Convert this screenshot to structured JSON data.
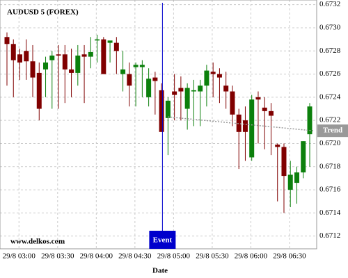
{
  "chart_data": {
    "type": "candlestick",
    "title": "AUDUSD 5 (FOREX)",
    "x_label": "Date",
    "watermark": "www.delkos.com",
    "categories": [
      "29/8 02:55",
      "29/8 03:00",
      "29/8 03:05",
      "29/8 03:10",
      "29/8 03:15",
      "29/8 03:20",
      "29/8 03:25",
      "29/8 03:30",
      "29/8 03:35",
      "29/8 03:40",
      "29/8 03:45",
      "29/8 03:50",
      "29/8 03:55",
      "29/8 04:00",
      "29/8 04:05",
      "29/8 04:10",
      "29/8 04:15",
      "29/8 04:20",
      "29/8 04:25",
      "29/8 04:30",
      "29/8 04:35",
      "29/8 04:40",
      "29/8 04:45",
      "29/8 04:50",
      "29/8 04:55",
      "29/8 05:00",
      "29/8 05:05",
      "29/8 05:10",
      "29/8 05:15",
      "29/8 05:20",
      "29/8 05:25",
      "29/8 05:30",
      "29/8 05:35",
      "29/8 05:40",
      "29/8 05:45",
      "29/8 05:50",
      "29/8 05:55",
      "29/8 06:00",
      "29/8 06:05",
      "29/8 06:10",
      "29/8 06:15",
      "29/8 06:20",
      "29/8 06:25",
      "29/8 06:30",
      "29/8 06:35",
      "29/8 06:40",
      "29/8 06:45",
      "29/8 06:50"
    ],
    "open": [
      0.67292,
      0.67286,
      0.67277,
      0.6728,
      0.67271,
      0.67261,
      0.67264,
      0.67272,
      0.67277,
      0.67277,
      0.67264,
      0.67261,
      0.67277,
      0.67275,
      0.67289,
      0.6729,
      0.67287,
      0.67287,
      0.6726,
      0.6726,
      0.67266,
      0.67266,
      0.6724,
      0.67257,
      0.67246,
      0.67222,
      0.67245,
      0.67248,
      0.6723,
      0.67245,
      0.67245,
      0.6725,
      0.67262,
      0.6726,
      0.6725,
      0.67245,
      0.67225,
      0.6722,
      0.67188,
      0.6724,
      0.67231,
      0.67228,
      0.67199,
      0.67197,
      0.6716,
      0.67166,
      0.67175,
      0.67208
    ],
    "high": [
      0.67296,
      0.6729,
      0.67282,
      0.6729,
      0.67285,
      0.6727,
      0.67275,
      0.6728,
      0.67285,
      0.67285,
      0.67282,
      0.67285,
      0.67285,
      0.67292,
      0.67294,
      0.67292,
      0.67288,
      0.67292,
      0.6728,
      0.6727,
      0.6727,
      0.67272,
      0.67265,
      0.67262,
      0.67252,
      0.6724,
      0.6726,
      0.67258,
      0.67252,
      0.67255,
      0.67255,
      0.67268,
      0.6727,
      0.67265,
      0.67262,
      0.6725,
      0.6723,
      0.67232,
      0.67242,
      0.67245,
      0.6724,
      0.67235,
      0.672,
      0.672,
      0.67185,
      0.6718,
      0.67202,
      0.67235
    ],
    "low": [
      0.6725,
      0.6724,
      0.67255,
      0.67255,
      0.6724,
      0.6722,
      0.6724,
      0.6723,
      0.6723,
      0.67235,
      0.6724,
      0.6725,
      0.67235,
      0.67265,
      0.6727,
      0.6726,
      0.6727,
      0.6726,
      0.67245,
      0.67232,
      0.67232,
      0.6724,
      0.67232,
      0.67225,
      0.67212,
      0.6719,
      0.6722,
      0.6722,
      0.67212,
      0.67215,
      0.67215,
      0.67232,
      0.6724,
      0.67235,
      0.6723,
      0.67215,
      0.67178,
      0.67185,
      0.67185,
      0.672,
      0.67195,
      0.6719,
      0.6715,
      0.6714,
      0.67145,
      0.67148,
      0.6717,
      0.6718
    ],
    "close": [
      0.67286,
      0.67272,
      0.6727,
      0.67271,
      0.67257,
      0.6723,
      0.6727,
      0.67276,
      0.67276,
      0.67264,
      0.67261,
      0.67276,
      0.67275,
      0.67279,
      0.6729,
      0.6726,
      0.67289,
      0.6728,
      0.67264,
      0.6725,
      0.67268,
      0.67268,
      0.67256,
      0.67254,
      0.6721,
      0.67237,
      0.67242,
      0.67245,
      0.67248,
      0.67246,
      0.6725,
      0.67263,
      0.6726,
      0.67257,
      0.67245,
      0.67225,
      0.6721,
      0.6721,
      0.67238,
      0.67238,
      0.67228,
      0.67224,
      0.67197,
      0.67172,
      0.67173,
      0.67175,
      0.67202,
      0.67232
    ],
    "up_color": "#0c800c",
    "down_color": "#800000",
    "ylim": [
      0.67109,
      0.67324
    ],
    "yticks": [
      0.6712,
      0.6714,
      0.6716,
      0.6718,
      {
        "value": 0.672,
        "label": "0.6720"
      },
      0.6722,
      0.6724,
      0.6726,
      0.6728,
      {
        "value": 0.673,
        "label": "0.6730"
      },
      0.6732
    ],
    "xticks": [
      "29/8 03:00",
      "29/8 03:30",
      "29/8 04:00",
      "29/8 04:30",
      "29/8 05:00",
      "29/8 05:30",
      "29/8 06:00",
      "29/8 06:30"
    ],
    "grid": true,
    "event": {
      "label": "Event",
      "x": "29/8 05:00",
      "color": "#0000cc"
    },
    "trend": {
      "label": "Trend",
      "x": [
        "29/8 05:00",
        "29/8 06:50"
      ],
      "values": [
        0.67223,
        0.67211
      ],
      "color": "#999999"
    }
  }
}
